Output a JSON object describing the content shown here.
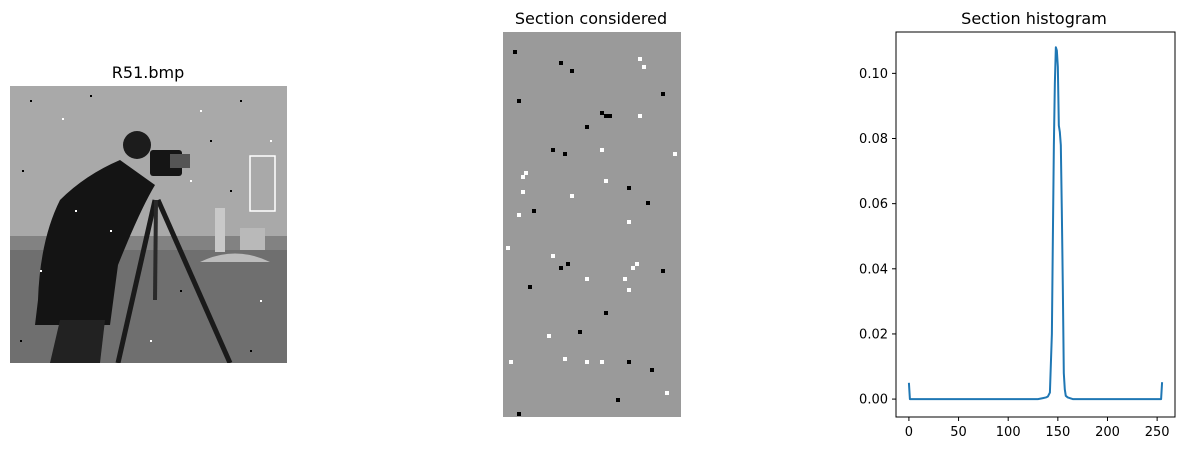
{
  "figure": {
    "panels": [
      {
        "title": "R51.bmp"
      },
      {
        "title": "Section considered"
      },
      {
        "title": "Section histogram"
      }
    ]
  },
  "colors": {
    "line": "#1f77b4",
    "section_gray": "#9a9a9a",
    "box": "#ffffff"
  },
  "chart_data": {
    "type": "line",
    "title": "Section histogram",
    "xlabel": "",
    "ylabel": "",
    "xlim": [
      -13,
      268
    ],
    "ylim": [
      -0.0055,
      0.1127
    ],
    "xticks": [
      0,
      50,
      100,
      150,
      200,
      250
    ],
    "yticks": [
      0.0,
      0.02,
      0.04,
      0.06,
      0.08,
      0.1
    ],
    "xtick_labels": [
      "0",
      "50",
      "100",
      "150",
      "200",
      "250"
    ],
    "ytick_labels": [
      "0.00",
      "0.02",
      "0.04",
      "0.06",
      "0.08",
      "0.10"
    ],
    "grid": false,
    "series": [
      {
        "x": [
          0,
          1,
          2,
          10,
          50,
          100,
          130,
          135,
          138,
          140,
          142,
          144,
          145,
          146,
          147,
          148,
          149,
          150,
          151,
          152,
          153,
          154,
          155,
          156,
          157,
          158,
          160,
          165,
          200,
          250,
          254,
          255
        ],
        "y": [
          0.005,
          0.0,
          0.0,
          0.0,
          0.0,
          0.0,
          0.0,
          0.0003,
          0.0005,
          0.0008,
          0.002,
          0.02,
          0.05,
          0.078,
          0.097,
          0.108,
          0.107,
          0.102,
          0.084,
          0.082,
          0.078,
          0.058,
          0.035,
          0.008,
          0.003,
          0.001,
          0.0005,
          0.0,
          0.0,
          0.0,
          0.0,
          0.0052
        ]
      }
    ]
  }
}
